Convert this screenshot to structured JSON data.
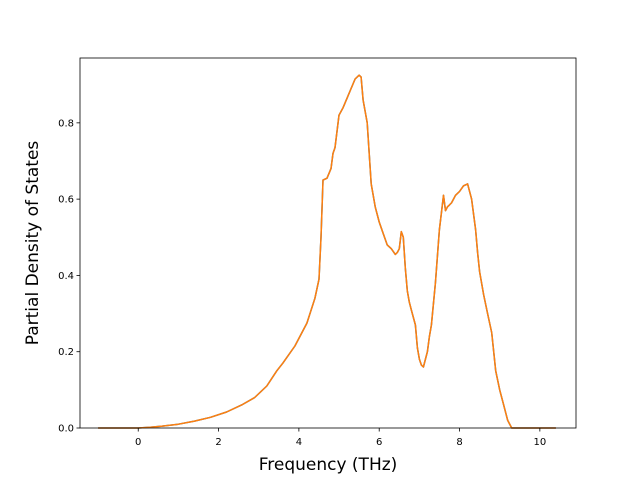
{
  "chart_data": {
    "type": "line",
    "title": "",
    "xlabel": "Frequency (THz)",
    "ylabel": "Partial Density of States",
    "xlim": [
      -1.45,
      10.9
    ],
    "ylim": [
      0.0,
      0.97
    ],
    "xticks": [
      0,
      2,
      4,
      6,
      8,
      10
    ],
    "xtick_labels": [
      "0",
      "2",
      "4",
      "6",
      "8",
      "10"
    ],
    "yticks": [
      0.0,
      0.2,
      0.4,
      0.6,
      0.8
    ],
    "ytick_labels": [
      "0.0",
      "0.2",
      "0.4",
      "0.6",
      "0.8"
    ],
    "grid": false,
    "colors": {
      "series_under": "#1f77b4",
      "series_over": "#ff7f0e"
    },
    "series": [
      {
        "x": [
          -1.0,
          -0.5,
          0.0,
          0.3,
          0.6,
          1.0,
          1.4,
          1.8,
          2.2,
          2.6,
          2.9,
          3.2,
          3.45,
          3.6,
          3.9,
          4.2,
          4.4,
          4.5,
          4.55,
          4.6,
          4.7,
          4.8,
          4.85,
          4.9,
          5.0,
          5.1,
          5.2,
          5.3,
          5.4,
          5.5,
          5.55,
          5.6,
          5.7,
          5.75,
          5.8,
          5.9,
          6.0,
          6.1,
          6.2,
          6.3,
          6.4,
          6.45,
          6.5,
          6.55,
          6.6,
          6.65,
          6.7,
          6.75,
          6.8,
          6.9,
          6.95,
          7.0,
          7.05,
          7.1,
          7.2,
          7.25,
          7.3,
          7.4,
          7.5,
          7.6,
          7.65,
          7.7,
          7.75,
          7.8,
          7.85,
          7.9,
          8.0,
          8.1,
          8.2,
          8.3,
          8.4,
          8.45,
          8.5,
          8.6,
          8.7,
          8.8,
          8.85,
          8.9,
          9.0,
          9.1,
          9.2,
          9.3,
          9.35,
          9.4,
          9.45,
          9.5,
          9.7,
          10.0,
          10.4
        ],
        "y": [
          0.0,
          0.0,
          0.0,
          0.002,
          0.005,
          0.01,
          0.018,
          0.028,
          0.042,
          0.062,
          0.08,
          0.11,
          0.15,
          0.17,
          0.215,
          0.275,
          0.34,
          0.39,
          0.5,
          0.65,
          0.655,
          0.68,
          0.72,
          0.735,
          0.82,
          0.84,
          0.865,
          0.89,
          0.915,
          0.925,
          0.92,
          0.86,
          0.8,
          0.72,
          0.64,
          0.58,
          0.54,
          0.51,
          0.48,
          0.47,
          0.455,
          0.46,
          0.47,
          0.515,
          0.5,
          0.42,
          0.36,
          0.33,
          0.31,
          0.27,
          0.21,
          0.18,
          0.165,
          0.16,
          0.2,
          0.24,
          0.27,
          0.38,
          0.52,
          0.61,
          0.57,
          0.58,
          0.585,
          0.59,
          0.6,
          0.61,
          0.62,
          0.635,
          0.64,
          0.6,
          0.52,
          0.46,
          0.41,
          0.35,
          0.3,
          0.25,
          0.2,
          0.15,
          0.1,
          0.06,
          0.02,
          0.0,
          0.0,
          0.0,
          0.0,
          0.0,
          0.0,
          0.0,
          0.0
        ]
      }
    ]
  }
}
